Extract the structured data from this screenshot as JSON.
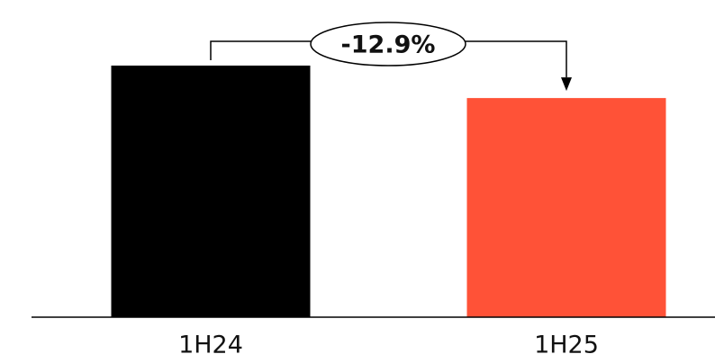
{
  "chart_data": {
    "type": "bar",
    "categories": [
      "1H24",
      "1H25"
    ],
    "values": [
      100,
      87.1
    ],
    "colors": [
      "#000000",
      "#ff5237"
    ],
    "ylim": [
      0,
      100
    ],
    "grid": false,
    "annotation": {
      "label": "-12.9%",
      "from_category": "1H24",
      "to_category": "1H25",
      "style": "bracket-arrow"
    }
  }
}
